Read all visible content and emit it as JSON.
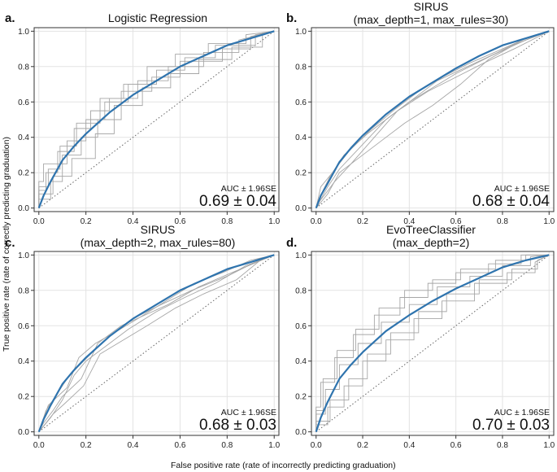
{
  "xlabel": "False positive rate (rate of incorrectly predicting graduation)",
  "ylabel": "True positive rate (rate of correctly predicting graduation)",
  "chart_data": [
    {
      "type": "line",
      "letter": "a.",
      "title_lines": [
        "Logistic Regression"
      ],
      "xlim": [
        0,
        1
      ],
      "ylim": [
        0,
        1
      ],
      "x_ticks": [
        "0.0",
        "0.2",
        "0.4",
        "0.6",
        "0.8",
        "1.0"
      ],
      "y_ticks": [
        "0.0",
        "0.2",
        "0.4",
        "0.6",
        "0.8",
        "1.0"
      ],
      "grid": true,
      "diagonal": true,
      "auc_label": "AUC ± 1.96SE",
      "auc_value": "0.69 ± 0.04",
      "mean_curve": {
        "x": [
          0,
          0.02,
          0.05,
          0.1,
          0.15,
          0.2,
          0.3,
          0.4,
          0.5,
          0.6,
          0.7,
          0.8,
          0.9,
          1.0
        ],
        "y": [
          0,
          0.07,
          0.15,
          0.27,
          0.35,
          0.42,
          0.54,
          0.64,
          0.72,
          0.8,
          0.86,
          0.92,
          0.96,
          1.0
        ]
      },
      "fold_curves": [
        {
          "x": [
            0,
            0,
            0.03,
            0.03,
            0.08,
            0.08,
            0.15,
            0.15,
            0.22,
            0.22,
            0.3,
            0.3,
            0.42,
            0.42,
            0.55,
            0.55,
            0.7,
            0.7,
            0.85,
            0.85,
            1.0
          ],
          "y": [
            0,
            0.1,
            0.1,
            0.2,
            0.2,
            0.32,
            0.32,
            0.45,
            0.45,
            0.55,
            0.55,
            0.62,
            0.62,
            0.72,
            0.72,
            0.8,
            0.8,
            0.88,
            0.88,
            0.95,
            1.0
          ]
        },
        {
          "x": [
            0,
            0,
            0.05,
            0.05,
            0.1,
            0.1,
            0.18,
            0.18,
            0.25,
            0.25,
            0.35,
            0.35,
            0.48,
            0.48,
            0.6,
            0.6,
            0.78,
            0.78,
            0.9,
            0.9,
            1.0
          ],
          "y": [
            0,
            0.05,
            0.05,
            0.15,
            0.15,
            0.3,
            0.3,
            0.4,
            0.4,
            0.5,
            0.5,
            0.66,
            0.66,
            0.74,
            0.74,
            0.83,
            0.83,
            0.9,
            0.9,
            0.97,
            1.0
          ]
        },
        {
          "x": [
            0,
            0,
            0.02,
            0.02,
            0.12,
            0.12,
            0.2,
            0.2,
            0.28,
            0.28,
            0.38,
            0.38,
            0.5,
            0.5,
            0.62,
            0.62,
            0.75,
            0.75,
            0.92,
            0.92,
            1.0
          ],
          "y": [
            0,
            0.15,
            0.15,
            0.25,
            0.25,
            0.38,
            0.38,
            0.5,
            0.5,
            0.6,
            0.6,
            0.7,
            0.7,
            0.78,
            0.78,
            0.85,
            0.85,
            0.92,
            0.92,
            0.98,
            1.0
          ]
        },
        {
          "x": [
            0,
            0,
            0.06,
            0.06,
            0.14,
            0.14,
            0.24,
            0.24,
            0.32,
            0.32,
            0.44,
            0.44,
            0.56,
            0.56,
            0.68,
            0.68,
            0.82,
            0.82,
            0.95,
            0.95,
            1.0
          ],
          "y": [
            0,
            0.08,
            0.08,
            0.18,
            0.18,
            0.28,
            0.28,
            0.42,
            0.42,
            0.58,
            0.58,
            0.68,
            0.68,
            0.76,
            0.76,
            0.84,
            0.84,
            0.91,
            0.91,
            0.99,
            1.0
          ]
        },
        {
          "x": [
            0,
            0,
            0.04,
            0.04,
            0.09,
            0.09,
            0.16,
            0.16,
            0.26,
            0.26,
            0.36,
            0.36,
            0.46,
            0.46,
            0.58,
            0.58,
            0.72,
            0.72,
            0.88,
            0.88,
            1.0
          ],
          "y": [
            0,
            0.12,
            0.12,
            0.22,
            0.22,
            0.35,
            0.35,
            0.48,
            0.48,
            0.62,
            0.62,
            0.7,
            0.7,
            0.8,
            0.8,
            0.87,
            0.87,
            0.93,
            0.93,
            0.98,
            1.0
          ]
        }
      ]
    },
    {
      "type": "line",
      "letter": "b.",
      "title_lines": [
        "SIRUS",
        "(max_depth=1, max_rules=30)"
      ],
      "xlim": [
        0,
        1
      ],
      "ylim": [
        0,
        1
      ],
      "x_ticks": [
        "0.0",
        "0.2",
        "0.4",
        "0.6",
        "0.8",
        "1.0"
      ],
      "y_ticks": [
        "0.0",
        "0.2",
        "0.4",
        "0.6",
        "0.8",
        "1.0"
      ],
      "grid": true,
      "diagonal": true,
      "auc_label": "AUC ± 1.96SE",
      "auc_value": "0.68 ± 0.04",
      "mean_curve": {
        "x": [
          0,
          0.02,
          0.05,
          0.1,
          0.15,
          0.2,
          0.3,
          0.4,
          0.5,
          0.6,
          0.7,
          0.8,
          0.9,
          1.0
        ],
        "y": [
          0,
          0.07,
          0.14,
          0.26,
          0.34,
          0.41,
          0.53,
          0.63,
          0.71,
          0.79,
          0.86,
          0.92,
          0.96,
          1.0
        ]
      },
      "fold_curves": [
        {
          "x": [
            0,
            0.02,
            0.05,
            0.1,
            0.2,
            0.3,
            0.4,
            0.5,
            0.6,
            0.75,
            0.9,
            1.0
          ],
          "y": [
            0,
            0.05,
            0.12,
            0.22,
            0.36,
            0.5,
            0.6,
            0.68,
            0.76,
            0.86,
            0.95,
            1.0
          ]
        },
        {
          "x": [
            0,
            0.03,
            0.06,
            0.12,
            0.22,
            0.32,
            0.42,
            0.52,
            0.65,
            0.78,
            0.9,
            1.0
          ],
          "y": [
            0,
            0.1,
            0.18,
            0.3,
            0.42,
            0.52,
            0.62,
            0.72,
            0.8,
            0.88,
            0.96,
            1.0
          ]
        },
        {
          "x": [
            0,
            0.01,
            0.04,
            0.08,
            0.15,
            0.25,
            0.35,
            0.48,
            0.6,
            0.72,
            0.85,
            1.0
          ],
          "y": [
            0,
            0.03,
            0.08,
            0.15,
            0.25,
            0.4,
            0.55,
            0.66,
            0.74,
            0.82,
            0.9,
            1.0
          ]
        },
        {
          "x": [
            0,
            0.02,
            0.07,
            0.14,
            0.24,
            0.34,
            0.44,
            0.54,
            0.66,
            0.8,
            0.92,
            1.0
          ],
          "y": [
            0,
            0.12,
            0.2,
            0.32,
            0.45,
            0.56,
            0.66,
            0.74,
            0.82,
            0.9,
            0.97,
            1.0
          ]
        },
        {
          "x": [
            0,
            0.05,
            0.1,
            0.18,
            0.28,
            0.38,
            0.5,
            0.62,
            0.74,
            0.86,
            1.0
          ],
          "y": [
            0,
            0.08,
            0.2,
            0.28,
            0.38,
            0.48,
            0.58,
            0.7,
            0.84,
            0.93,
            1.0
          ]
        }
      ]
    },
    {
      "type": "line",
      "letter": "c.",
      "title_lines": [
        "SIRUS",
        "(max_depth=2, max_rules=80)"
      ],
      "xlim": [
        0,
        1
      ],
      "ylim": [
        0,
        1
      ],
      "x_ticks": [
        "0.0",
        "0.2",
        "0.4",
        "0.6",
        "0.8",
        "1.0"
      ],
      "y_ticks": [
        "0.0",
        "0.2",
        "0.4",
        "0.6",
        "0.8",
        "1.0"
      ],
      "grid": true,
      "diagonal": true,
      "auc_label": "AUC ± 1.96SE",
      "auc_value": "0.68 ± 0.03",
      "mean_curve": {
        "x": [
          0,
          0.02,
          0.05,
          0.1,
          0.15,
          0.2,
          0.3,
          0.4,
          0.5,
          0.6,
          0.7,
          0.8,
          0.9,
          1.0
        ],
        "y": [
          0,
          0.07,
          0.15,
          0.27,
          0.35,
          0.42,
          0.54,
          0.64,
          0.72,
          0.8,
          0.86,
          0.92,
          0.96,
          1.0
        ]
      },
      "fold_curves": [
        {
          "x": [
            0,
            0.03,
            0.08,
            0.12,
            0.16,
            0.22,
            0.3,
            0.4,
            0.52,
            0.65,
            0.8,
            0.92,
            1.0
          ],
          "y": [
            0,
            0.12,
            0.22,
            0.3,
            0.36,
            0.44,
            0.54,
            0.64,
            0.72,
            0.8,
            0.88,
            0.96,
            1.0
          ]
        },
        {
          "x": [
            0,
            0.05,
            0.1,
            0.15,
            0.2,
            0.28,
            0.38,
            0.5,
            0.62,
            0.75,
            0.88,
            1.0
          ],
          "y": [
            0,
            0.08,
            0.18,
            0.32,
            0.4,
            0.48,
            0.58,
            0.68,
            0.76,
            0.84,
            0.94,
            1.0
          ]
        },
        {
          "x": [
            0,
            0.02,
            0.06,
            0.1,
            0.18,
            0.25,
            0.35,
            0.45,
            0.55,
            0.68,
            0.82,
            1.0
          ],
          "y": [
            0,
            0.05,
            0.12,
            0.2,
            0.3,
            0.5,
            0.6,
            0.66,
            0.72,
            0.82,
            0.9,
            1.0
          ]
        },
        {
          "x": [
            0,
            0.04,
            0.12,
            0.17,
            0.24,
            0.32,
            0.42,
            0.54,
            0.66,
            0.78,
            0.9,
            1.0
          ],
          "y": [
            0,
            0.15,
            0.25,
            0.42,
            0.5,
            0.56,
            0.64,
            0.74,
            0.84,
            0.9,
            0.97,
            1.0
          ]
        },
        {
          "x": [
            0,
            0.06,
            0.11,
            0.19,
            0.26,
            0.36,
            0.46,
            0.58,
            0.7,
            0.84,
            0.95,
            1.0
          ],
          "y": [
            0,
            0.1,
            0.16,
            0.26,
            0.44,
            0.52,
            0.6,
            0.7,
            0.78,
            0.86,
            0.98,
            1.0
          ]
        }
      ]
    },
    {
      "type": "line",
      "letter": "d.",
      "title_lines": [
        "EvoTreeClassifier",
        "(max_depth=2)"
      ],
      "xlim": [
        0,
        1
      ],
      "ylim": [
        0,
        1
      ],
      "x_ticks": [
        "0.0",
        "0.2",
        "0.4",
        "0.6",
        "0.8",
        "1.0"
      ],
      "y_ticks": [
        "0.0",
        "0.2",
        "0.4",
        "0.6",
        "0.8",
        "1.0"
      ],
      "grid": true,
      "diagonal": true,
      "auc_label": "AUC ± 1.96SE",
      "auc_value": "0.70 ± 0.03",
      "mean_curve": {
        "x": [
          0,
          0.02,
          0.05,
          0.1,
          0.15,
          0.2,
          0.3,
          0.4,
          0.5,
          0.6,
          0.7,
          0.8,
          0.9,
          1.0
        ],
        "y": [
          0,
          0.08,
          0.17,
          0.3,
          0.38,
          0.45,
          0.57,
          0.66,
          0.74,
          0.81,
          0.87,
          0.93,
          0.97,
          1.0
        ]
      },
      "fold_curves": [
        {
          "x": [
            0,
            0,
            0.04,
            0.04,
            0.1,
            0.1,
            0.18,
            0.18,
            0.28,
            0.28,
            0.4,
            0.4,
            0.52,
            0.52,
            0.66,
            0.66,
            0.8,
            0.8,
            0.92,
            0.92,
            1.0
          ],
          "y": [
            0,
            0.1,
            0.1,
            0.24,
            0.24,
            0.38,
            0.38,
            0.5,
            0.5,
            0.62,
            0.62,
            0.72,
            0.72,
            0.82,
            0.82,
            0.88,
            0.88,
            0.94,
            0.94,
            0.99,
            1.0
          ]
        },
        {
          "x": [
            0,
            0,
            0.06,
            0.06,
            0.14,
            0.14,
            0.22,
            0.22,
            0.32,
            0.32,
            0.44,
            0.44,
            0.56,
            0.56,
            0.7,
            0.7,
            0.84,
            0.84,
            0.95,
            0.95,
            1.0
          ],
          "y": [
            0,
            0.06,
            0.06,
            0.18,
            0.18,
            0.3,
            0.3,
            0.44,
            0.44,
            0.56,
            0.56,
            0.68,
            0.68,
            0.78,
            0.78,
            0.86,
            0.86,
            0.92,
            0.92,
            0.97,
            1.0
          ]
        },
        {
          "x": [
            0,
            0,
            0.02,
            0.02,
            0.08,
            0.08,
            0.16,
            0.16,
            0.25,
            0.25,
            0.36,
            0.36,
            0.48,
            0.48,
            0.6,
            0.6,
            0.74,
            0.74,
            0.88,
            0.88,
            1.0
          ],
          "y": [
            0,
            0.14,
            0.14,
            0.28,
            0.28,
            0.42,
            0.42,
            0.55,
            0.55,
            0.66,
            0.66,
            0.76,
            0.76,
            0.84,
            0.84,
            0.9,
            0.9,
            0.95,
            0.95,
            1.0,
            1.0
          ]
        },
        {
          "x": [
            0,
            0,
            0.05,
            0.05,
            0.12,
            0.12,
            0.2,
            0.2,
            0.3,
            0.3,
            0.42,
            0.42,
            0.54,
            0.54,
            0.68,
            0.68,
            0.82,
            0.82,
            0.94,
            0.94,
            1.0
          ],
          "y": [
            0,
            0.04,
            0.04,
            0.14,
            0.14,
            0.26,
            0.26,
            0.4,
            0.4,
            0.52,
            0.52,
            0.64,
            0.64,
            0.74,
            0.74,
            0.84,
            0.84,
            0.9,
            0.9,
            0.96,
            1.0
          ]
        },
        {
          "x": [
            0,
            0,
            0.03,
            0.03,
            0.09,
            0.09,
            0.17,
            0.17,
            0.27,
            0.27,
            0.38,
            0.38,
            0.5,
            0.5,
            0.62,
            0.62,
            0.77,
            0.77,
            0.9,
            0.9,
            1.0
          ],
          "y": [
            0,
            0.12,
            0.12,
            0.3,
            0.3,
            0.46,
            0.46,
            0.58,
            0.58,
            0.7,
            0.7,
            0.8,
            0.8,
            0.86,
            0.86,
            0.92,
            0.92,
            0.97,
            0.97,
            1.0,
            1.0
          ]
        }
      ]
    }
  ]
}
